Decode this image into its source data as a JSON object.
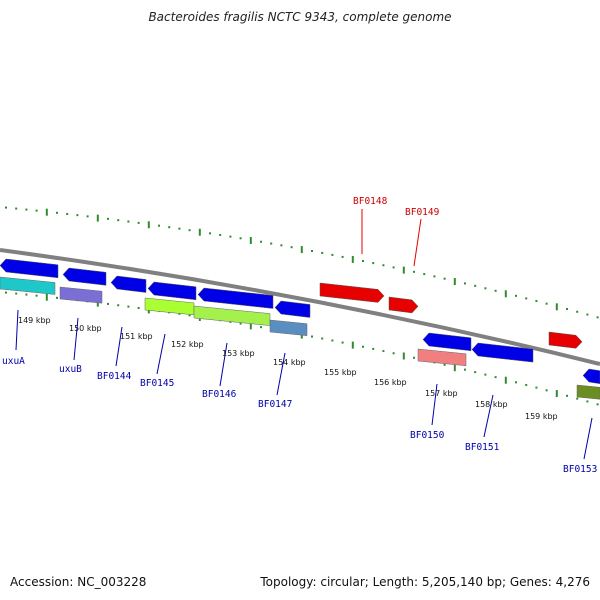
{
  "title": "Bacteroides fragilis NCTC 9343, complete genome",
  "footer": {
    "accession": "Accession: NC_003228",
    "summary": "Topology: circular; Length: 5,205,140 bp; Genes: 4,276"
  },
  "colors": {
    "backbone": "#808080",
    "tick": "#2e8b2e",
    "forward_gene": "#e60000",
    "forward_label": "#cc0000",
    "reverse_gene": "#0000e6",
    "reverse_label": "#0000aa"
  },
  "kbp_labels": [
    "149 kbp",
    "150 kbp",
    "151 kbp",
    "152 kbp",
    "153 kbp",
    "154 kbp",
    "155 kbp",
    "156 kbp",
    "157 kbp",
    "158 kbp",
    "159 kbp"
  ],
  "forward_genes": [
    {
      "label": "BF0148"
    },
    {
      "label": "BF0149"
    }
  ],
  "reverse_genes": [
    {
      "label": "uxuA"
    },
    {
      "label": "uxuB"
    },
    {
      "label": "BF0144"
    },
    {
      "label": "BF0145"
    },
    {
      "label": "BF0146"
    },
    {
      "label": "BF0147"
    },
    {
      "label": "BF0150"
    },
    {
      "label": "BF0151"
    },
    {
      "label": "BF0153"
    }
  ],
  "cog_bar_colors": [
    "#1fc8c8",
    "#7b6fd6",
    "#aaff33",
    "#a4f04c",
    "#5a8ec0",
    "#f08080",
    "#6b8e23"
  ]
}
